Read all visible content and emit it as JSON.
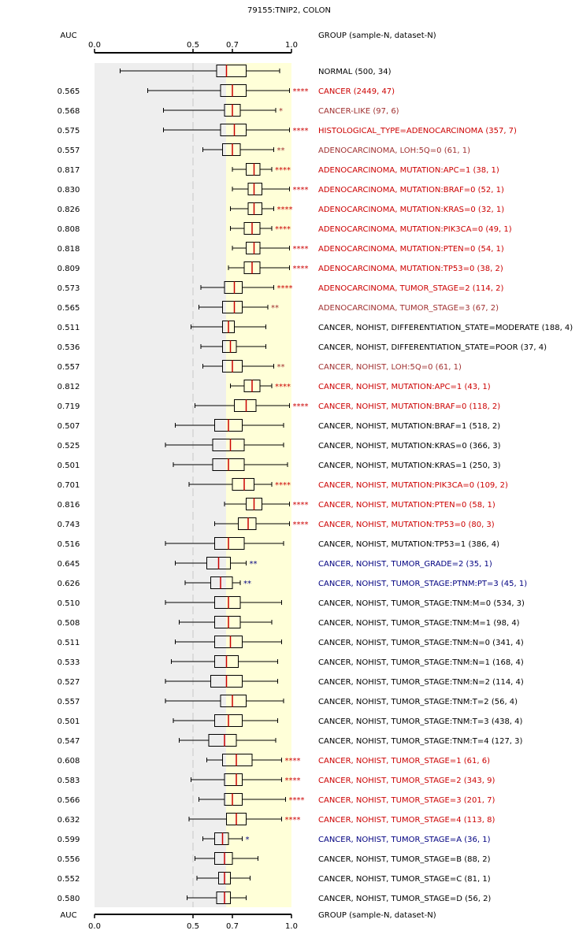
{
  "title": "79155:TNIP2, COLON",
  "header": {
    "auc_label": "AUC",
    "group_label": "GROUP (sample-N, dataset-N)"
  },
  "footer": {
    "auc_label": "AUC",
    "group_label": "GROUP (sample-N, dataset-N)"
  },
  "colors": {
    "significant_up": "#cc0000",
    "weak_up": "#a03030",
    "down": "#000080",
    "neutral": "#000000",
    "median": "#cc0000",
    "shade_gray": "#eeeeee",
    "shade_yellow": "#ffffd8"
  },
  "chart_data": {
    "type": "box",
    "xlim": [
      0.0,
      1.0
    ],
    "xticks": [
      {
        "value": 0.0,
        "label": "0.0"
      },
      {
        "value": 0.5,
        "label": "0.5"
      },
      {
        "value": 0.7,
        "label": "0.7"
      },
      {
        "value": 1.0,
        "label": "1.0"
      }
    ],
    "reference_line": 0.5,
    "shaded_regions": [
      {
        "from": 0.0,
        "to": 0.7,
        "color": "gray"
      },
      {
        "from": 0.7,
        "to": 1.0,
        "color": "yellow"
      }
    ],
    "groups": [
      {
        "label": "NORMAL (500, 34)",
        "auc": "",
        "sig": "",
        "cls": "neutral",
        "stats": [
          0.13,
          0.62,
          0.67,
          0.77,
          0.94
        ]
      },
      {
        "label": "CANCER (2449, 47)",
        "auc": "0.565",
        "sig": "****",
        "cls": "up",
        "stats": [
          0.27,
          0.64,
          0.7,
          0.77,
          0.99
        ]
      },
      {
        "label": "CANCER-LIKE (97, 6)",
        "auc": "0.568",
        "sig": "*",
        "cls": "weak",
        "stats": [
          0.35,
          0.66,
          0.7,
          0.74,
          0.92
        ]
      },
      {
        "label": "HISTOLOGICAL_TYPE=ADENOCARCINOMA (357, 7)",
        "auc": "0.575",
        "sig": "****",
        "cls": "up",
        "stats": [
          0.35,
          0.64,
          0.71,
          0.77,
          0.99
        ]
      },
      {
        "label": "ADENOCARCINOMA, LOH:5Q=0 (61, 1)",
        "auc": "0.557",
        "sig": "**",
        "cls": "weak",
        "stats": [
          0.55,
          0.65,
          0.7,
          0.74,
          0.91
        ]
      },
      {
        "label": "ADENOCARCINOMA, MUTATION:APC=1 (38, 1)",
        "auc": "0.817",
        "sig": "****",
        "cls": "up",
        "stats": [
          0.7,
          0.77,
          0.81,
          0.84,
          0.9
        ]
      },
      {
        "label": "ADENOCARCINOMA, MUTATION:BRAF=0 (52, 1)",
        "auc": "0.830",
        "sig": "****",
        "cls": "up",
        "stats": [
          0.7,
          0.78,
          0.81,
          0.85,
          0.99
        ]
      },
      {
        "label": "ADENOCARCINOMA, MUTATION:KRAS=0 (32, 1)",
        "auc": "0.826",
        "sig": "****",
        "cls": "up",
        "stats": [
          0.69,
          0.78,
          0.81,
          0.85,
          0.91
        ]
      },
      {
        "label": "ADENOCARCINOMA, MUTATION:PIK3CA=0 (49, 1)",
        "auc": "0.808",
        "sig": "****",
        "cls": "up",
        "stats": [
          0.69,
          0.76,
          0.8,
          0.84,
          0.9
        ]
      },
      {
        "label": "ADENOCARCINOMA, MUTATION:PTEN=0 (54, 1)",
        "auc": "0.818",
        "sig": "****",
        "cls": "up",
        "stats": [
          0.7,
          0.77,
          0.81,
          0.84,
          0.99
        ]
      },
      {
        "label": "ADENOCARCINOMA, MUTATION:TP53=0 (38, 2)",
        "auc": "0.809",
        "sig": "****",
        "cls": "up",
        "stats": [
          0.68,
          0.76,
          0.8,
          0.84,
          0.99
        ]
      },
      {
        "label": "ADENOCARCINOMA, TUMOR_STAGE=2 (114, 2)",
        "auc": "0.573",
        "sig": "****",
        "cls": "up",
        "stats": [
          0.54,
          0.66,
          0.71,
          0.75,
          0.91
        ]
      },
      {
        "label": "ADENOCARCINOMA, TUMOR_STAGE=3 (67, 2)",
        "auc": "0.565",
        "sig": "**",
        "cls": "weak",
        "stats": [
          0.53,
          0.65,
          0.71,
          0.75,
          0.88
        ]
      },
      {
        "label": "CANCER, NOHIST, DIFFERENTIATION_STATE=MODERATE (188, 4)",
        "auc": "0.511",
        "sig": "",
        "cls": "neutral",
        "stats": [
          0.49,
          0.65,
          0.68,
          0.71,
          0.87
        ]
      },
      {
        "label": "CANCER, NOHIST, DIFFERENTIATION_STATE=POOR (37, 4)",
        "auc": "0.536",
        "sig": "",
        "cls": "neutral",
        "stats": [
          0.54,
          0.65,
          0.69,
          0.72,
          0.87
        ]
      },
      {
        "label": "CANCER, NOHIST, LOH:5Q=0 (61, 1)",
        "auc": "0.557",
        "sig": "**",
        "cls": "weak",
        "stats": [
          0.55,
          0.65,
          0.7,
          0.75,
          0.91
        ]
      },
      {
        "label": "CANCER, NOHIST, MUTATION:APC=1 (43, 1)",
        "auc": "0.812",
        "sig": "****",
        "cls": "up",
        "stats": [
          0.69,
          0.76,
          0.8,
          0.84,
          0.9
        ]
      },
      {
        "label": "CANCER, NOHIST, MUTATION:BRAF=0 (118, 2)",
        "auc": "0.719",
        "sig": "****",
        "cls": "up",
        "stats": [
          0.51,
          0.71,
          0.77,
          0.82,
          0.99
        ]
      },
      {
        "label": "CANCER, NOHIST, MUTATION:BRAF=1 (518, 2)",
        "auc": "0.507",
        "sig": "",
        "cls": "neutral",
        "stats": [
          0.41,
          0.61,
          0.68,
          0.75,
          0.96
        ]
      },
      {
        "label": "CANCER, NOHIST, MUTATION:KRAS=0 (366, 3)",
        "auc": "0.525",
        "sig": "",
        "cls": "neutral",
        "stats": [
          0.36,
          0.6,
          0.69,
          0.76,
          0.96
        ]
      },
      {
        "label": "CANCER, NOHIST, MUTATION:KRAS=1 (250, 3)",
        "auc": "0.501",
        "sig": "",
        "cls": "neutral",
        "stats": [
          0.4,
          0.6,
          0.68,
          0.76,
          0.98
        ]
      },
      {
        "label": "CANCER, NOHIST, MUTATION:PIK3CA=0 (109, 2)",
        "auc": "0.701",
        "sig": "****",
        "cls": "up",
        "stats": [
          0.48,
          0.7,
          0.76,
          0.81,
          0.9
        ]
      },
      {
        "label": "CANCER, NOHIST, MUTATION:PTEN=0 (58, 1)",
        "auc": "0.816",
        "sig": "****",
        "cls": "up",
        "stats": [
          0.66,
          0.77,
          0.81,
          0.85,
          0.99
        ]
      },
      {
        "label": "CANCER, NOHIST, MUTATION:TP53=0 (80, 3)",
        "auc": "0.743",
        "sig": "****",
        "cls": "up",
        "stats": [
          0.61,
          0.73,
          0.78,
          0.82,
          0.99
        ]
      },
      {
        "label": "CANCER, NOHIST, MUTATION:TP53=1 (386, 4)",
        "auc": "0.516",
        "sig": "",
        "cls": "neutral",
        "stats": [
          0.36,
          0.61,
          0.68,
          0.76,
          0.96
        ]
      },
      {
        "label": "CANCER, NOHIST, TUMOR_GRADE=2 (35, 1)",
        "auc": "0.645",
        "sig": "**",
        "cls": "down",
        "stats": [
          0.41,
          0.57,
          0.63,
          0.69,
          0.77
        ]
      },
      {
        "label": "CANCER, NOHIST, TUMOR_STAGE:PTNM:PT=3 (45, 1)",
        "auc": "0.626",
        "sig": "**",
        "cls": "down",
        "stats": [
          0.46,
          0.59,
          0.64,
          0.7,
          0.74
        ]
      },
      {
        "label": "CANCER, NOHIST, TUMOR_STAGE:TNM:M=0 (534, 3)",
        "auc": "0.510",
        "sig": "",
        "cls": "neutral",
        "stats": [
          0.36,
          0.61,
          0.68,
          0.74,
          0.95
        ]
      },
      {
        "label": "CANCER, NOHIST, TUMOR_STAGE:TNM:M=1 (98, 4)",
        "auc": "0.508",
        "sig": "",
        "cls": "neutral",
        "stats": [
          0.43,
          0.61,
          0.68,
          0.74,
          0.9
        ]
      },
      {
        "label": "CANCER, NOHIST, TUMOR_STAGE:TNM:N=0 (341, 4)",
        "auc": "0.511",
        "sig": "",
        "cls": "neutral",
        "stats": [
          0.41,
          0.61,
          0.69,
          0.75,
          0.95
        ]
      },
      {
        "label": "CANCER, NOHIST, TUMOR_STAGE:TNM:N=1 (168, 4)",
        "auc": "0.533",
        "sig": "",
        "cls": "neutral",
        "stats": [
          0.39,
          0.61,
          0.67,
          0.73,
          0.93
        ]
      },
      {
        "label": "CANCER, NOHIST, TUMOR_STAGE:TNM:N=2 (114, 4)",
        "auc": "0.527",
        "sig": "",
        "cls": "neutral",
        "stats": [
          0.36,
          0.59,
          0.67,
          0.75,
          0.93
        ]
      },
      {
        "label": "CANCER, NOHIST, TUMOR_STAGE:TNM:T=2 (56, 4)",
        "auc": "0.557",
        "sig": "",
        "cls": "neutral",
        "stats": [
          0.36,
          0.64,
          0.7,
          0.77,
          0.96
        ]
      },
      {
        "label": "CANCER, NOHIST, TUMOR_STAGE:TNM:T=3 (438, 4)",
        "auc": "0.501",
        "sig": "",
        "cls": "neutral",
        "stats": [
          0.4,
          0.61,
          0.68,
          0.75,
          0.93
        ]
      },
      {
        "label": "CANCER, NOHIST, TUMOR_STAGE:TNM:T=4 (127, 3)",
        "auc": "0.547",
        "sig": "",
        "cls": "neutral",
        "stats": [
          0.43,
          0.58,
          0.66,
          0.72,
          0.92
        ]
      },
      {
        "label": "CANCER, NOHIST, TUMOR_STAGE=1 (61, 6)",
        "auc": "0.608",
        "sig": "****",
        "cls": "up",
        "stats": [
          0.57,
          0.65,
          0.72,
          0.8,
          0.95
        ]
      },
      {
        "label": "CANCER, NOHIST, TUMOR_STAGE=2 (343, 9)",
        "auc": "0.583",
        "sig": "****",
        "cls": "up",
        "stats": [
          0.49,
          0.66,
          0.72,
          0.75,
          0.95
        ]
      },
      {
        "label": "CANCER, NOHIST, TUMOR_STAGE=3 (201, 7)",
        "auc": "0.566",
        "sig": "****",
        "cls": "up",
        "stats": [
          0.53,
          0.66,
          0.7,
          0.75,
          0.97
        ]
      },
      {
        "label": "CANCER, NOHIST, TUMOR_STAGE=4 (113, 8)",
        "auc": "0.632",
        "sig": "****",
        "cls": "up",
        "stats": [
          0.48,
          0.67,
          0.72,
          0.77,
          0.95
        ]
      },
      {
        "label": "CANCER, NOHIST, TUMOR_STAGE=A (36, 1)",
        "auc": "0.599",
        "sig": "*",
        "cls": "down",
        "stats": [
          0.55,
          0.61,
          0.65,
          0.68,
          0.75
        ]
      },
      {
        "label": "CANCER, NOHIST, TUMOR_STAGE=B (88, 2)",
        "auc": "0.556",
        "sig": "",
        "cls": "neutral",
        "stats": [
          0.51,
          0.61,
          0.66,
          0.7,
          0.83
        ]
      },
      {
        "label": "CANCER, NOHIST, TUMOR_STAGE=C (81, 1)",
        "auc": "0.552",
        "sig": "",
        "cls": "neutral",
        "stats": [
          0.52,
          0.63,
          0.66,
          0.69,
          0.79
        ]
      },
      {
        "label": "CANCER, NOHIST, TUMOR_STAGE=D (56, 2)",
        "auc": "0.580",
        "sig": "",
        "cls": "neutral",
        "stats": [
          0.47,
          0.62,
          0.66,
          0.69,
          0.77
        ]
      }
    ]
  }
}
